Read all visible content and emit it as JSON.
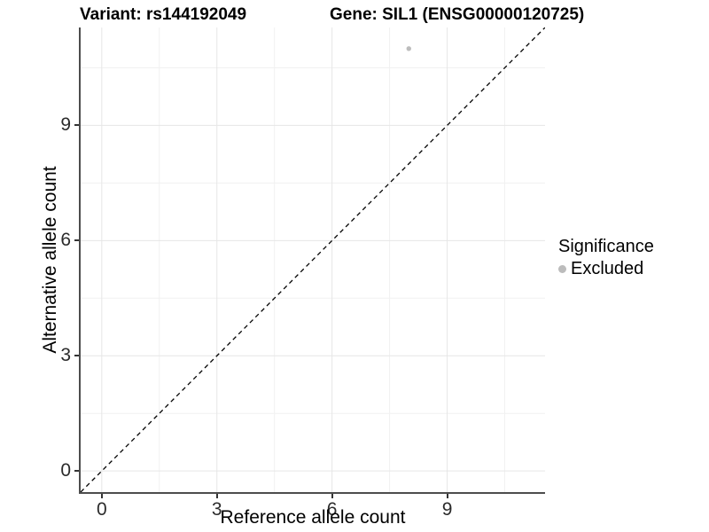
{
  "titles": {
    "left": "Variant: rs144192049",
    "right": "Gene: SIL1 (ENSG00000120725)"
  },
  "chart_data": {
    "type": "scatter",
    "xlabel": "Reference allele count",
    "ylabel": "Alternative allele count",
    "xlim": [
      -0.55,
      11.55
    ],
    "ylim": [
      -0.55,
      11.55
    ],
    "x_ticks": [
      0,
      3,
      6,
      9
    ],
    "y_ticks": [
      0,
      3,
      6,
      9
    ],
    "x_minor_ticks": [
      1.5,
      4.5,
      7.5,
      10.5
    ],
    "y_minor_ticks": [
      1.5,
      4.5,
      7.5,
      10.5
    ],
    "grid": true,
    "series": [
      {
        "name": "Excluded",
        "color": "#bcbcbc",
        "points": [
          {
            "x": 8,
            "y": 11
          }
        ]
      }
    ],
    "reference_line": {
      "type": "identity",
      "slope": 1,
      "intercept": 0,
      "style": "dashed",
      "color": "#000000"
    },
    "legend": {
      "title": "Significance",
      "position": "right",
      "items": [
        {
          "label": "Excluded",
          "color": "#bcbcbc"
        }
      ]
    }
  },
  "style_colors": {
    "major_grid": "#e6e6e6",
    "minor_grid": "#f1f1f1",
    "axis_line": "#4d4d4d",
    "tick": "#333333"
  }
}
